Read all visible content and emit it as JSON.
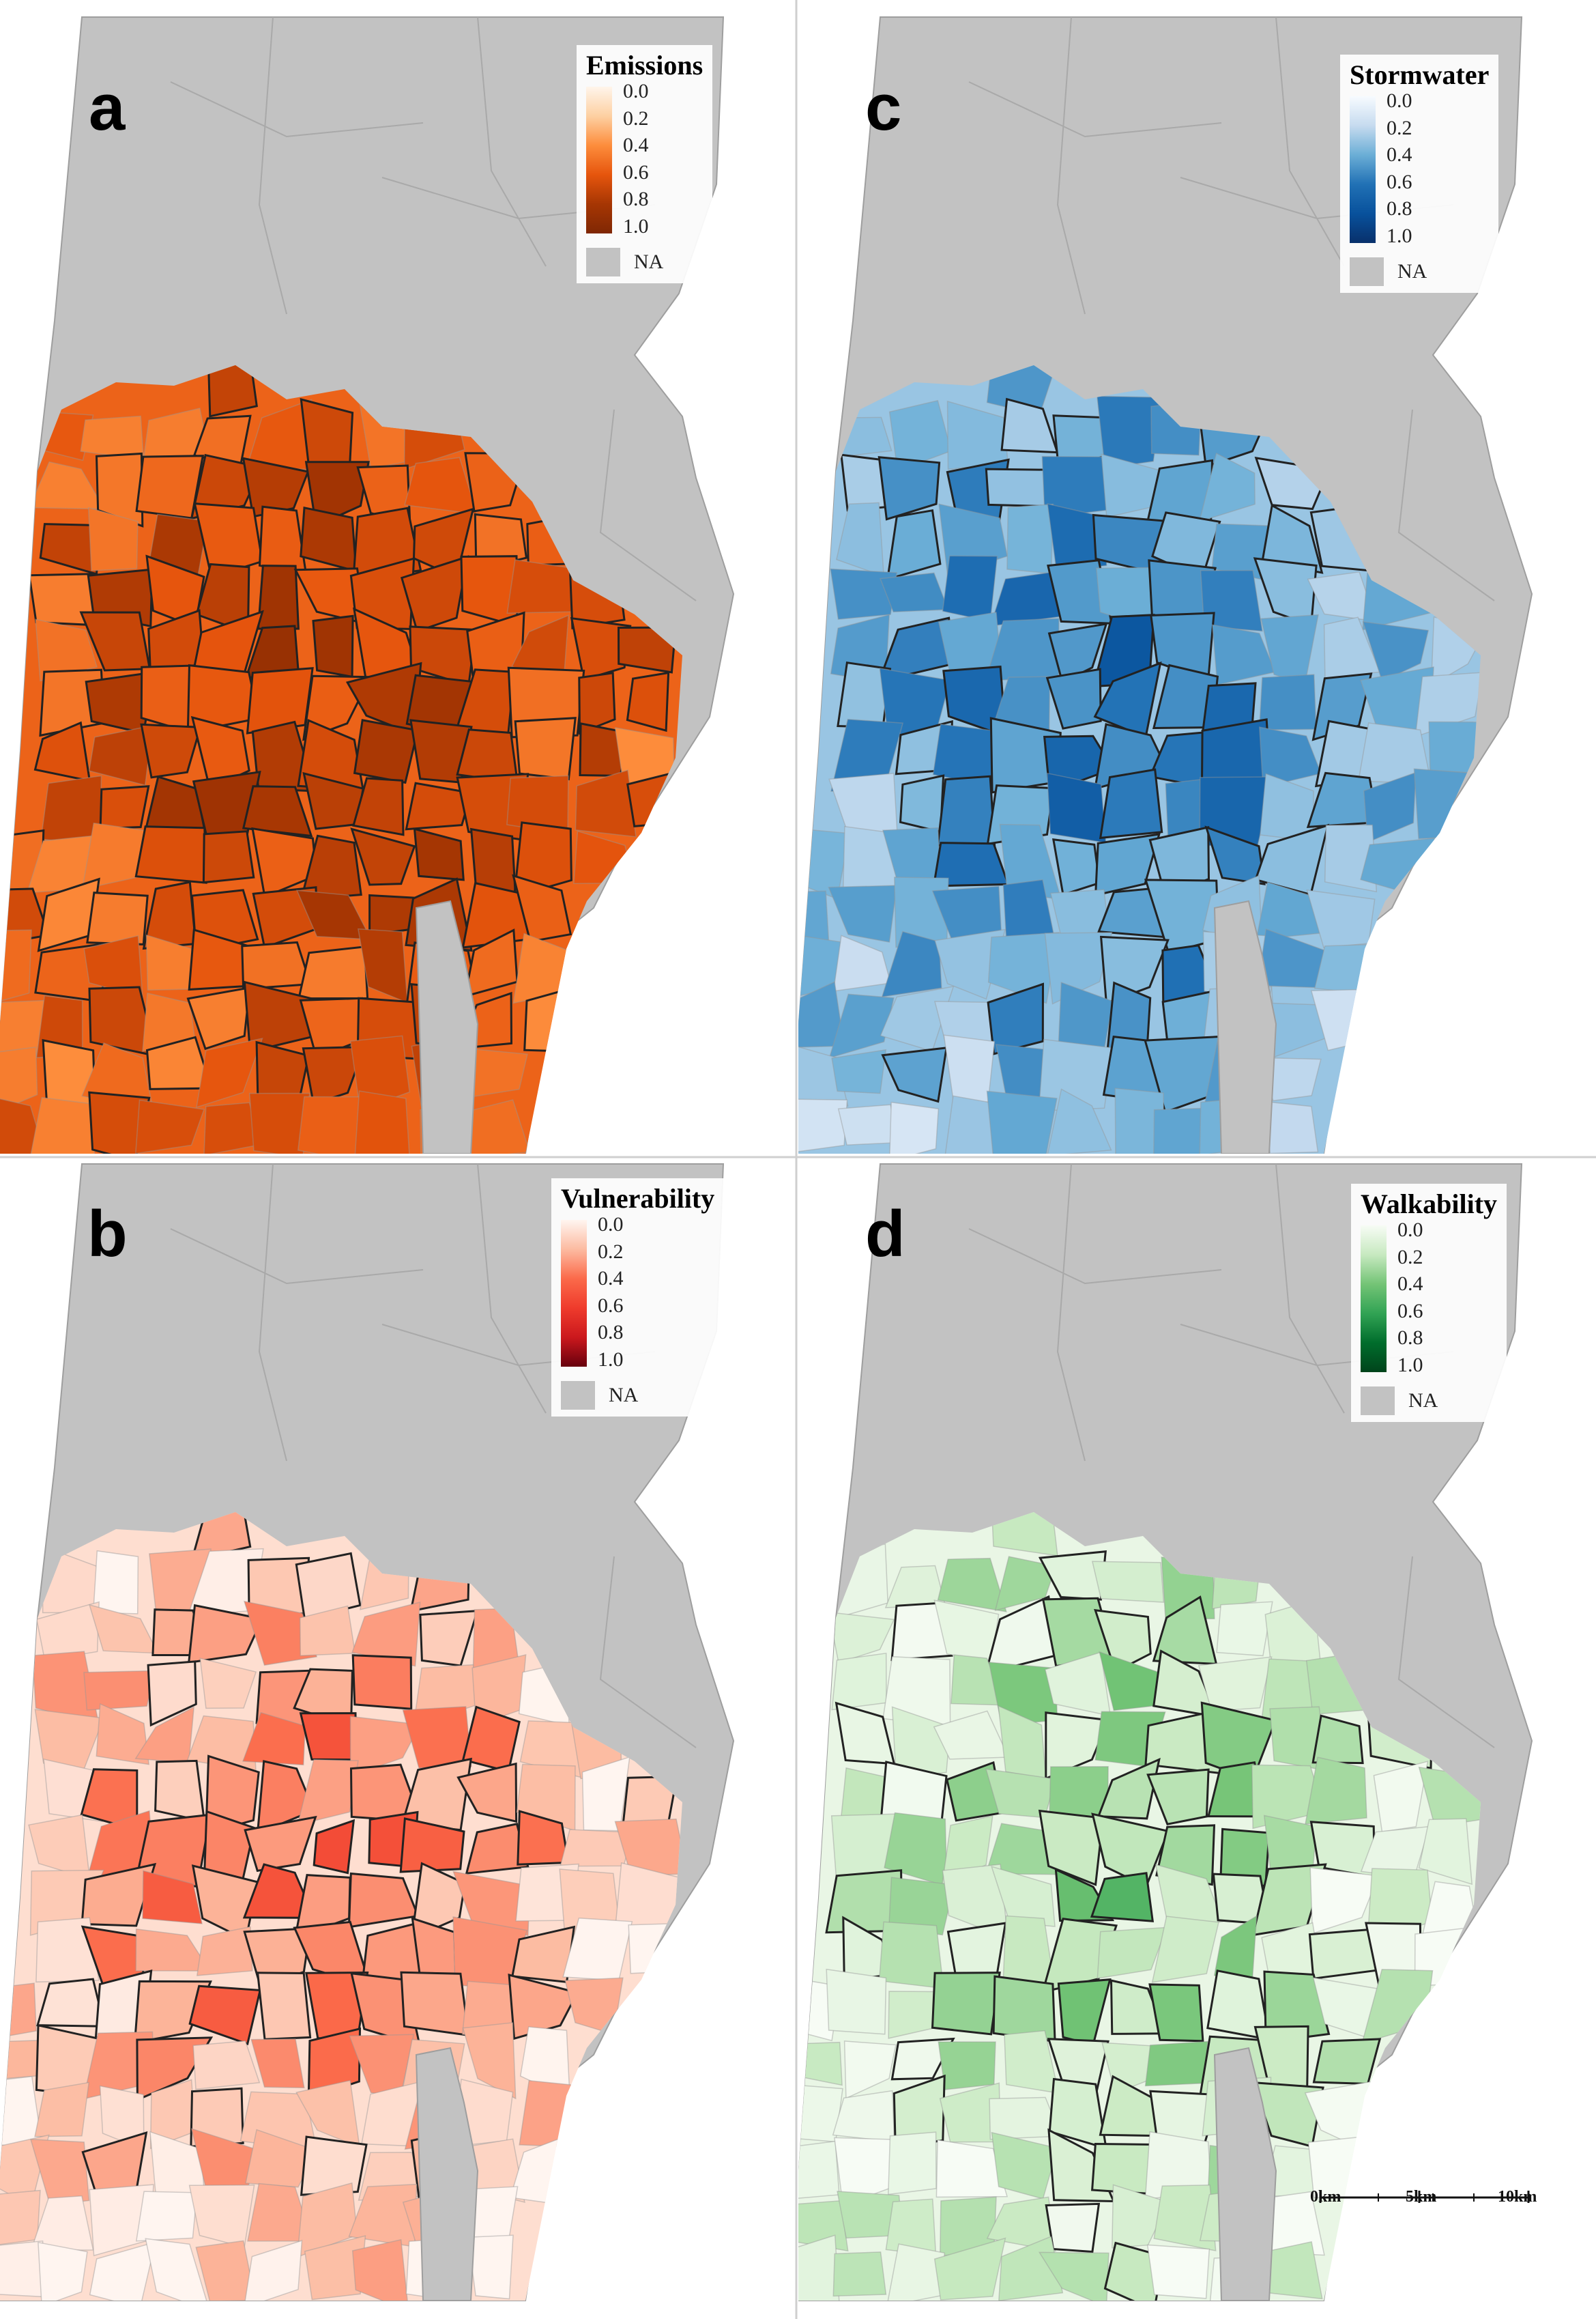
{
  "figure": {
    "panels": [
      {
        "id": "a",
        "letter": "a",
        "legend": {
          "title": "Emissions",
          "ticks": [
            "0.0",
            "0.2",
            "0.4",
            "0.6",
            "0.8",
            "1.0"
          ],
          "na_label": "NA",
          "colors": [
            "#fff5eb",
            "#fdd0a2",
            "#fd8d3c",
            "#e6550d",
            "#a63603",
            "#7f2704"
          ]
        },
        "value_summary": {
          "overall_level": 0.55,
          "core_level": 0.75,
          "outlined_count_approx": 45
        }
      },
      {
        "id": "c",
        "letter": "c",
        "legend": {
          "title": "Stormwater",
          "ticks": [
            "0.0",
            "0.2",
            "0.4",
            "0.6",
            "0.8",
            "1.0"
          ],
          "na_label": "NA",
          "colors": [
            "#f7fbff",
            "#c6dbef",
            "#6baed6",
            "#2171b5",
            "#08519c",
            "#08306b"
          ]
        },
        "value_summary": {
          "overall_level": 0.3,
          "core_level": 0.65,
          "outlined_count_approx": 40
        }
      },
      {
        "id": "b",
        "letter": "b",
        "legend": {
          "title": "Vulnerability",
          "ticks": [
            "0.0",
            "0.2",
            "0.4",
            "0.6",
            "0.8",
            "1.0"
          ],
          "na_label": "NA",
          "colors": [
            "#fff5f0",
            "#fcbba1",
            "#fb6a4a",
            "#ef3b2c",
            "#cb181d",
            "#67000d"
          ]
        },
        "value_summary": {
          "overall_level": 0.08,
          "core_level": 0.45,
          "outlined_count_approx": 35
        }
      },
      {
        "id": "d",
        "letter": "d",
        "legend": {
          "title": "Walkability",
          "ticks": [
            "0.0",
            "0.2",
            "0.4",
            "0.6",
            "0.8",
            "1.0"
          ],
          "na_label": "NA",
          "colors": [
            "#f7fcf5",
            "#c7e9c0",
            "#74c476",
            "#31a354",
            "#006d2c",
            "#00441b"
          ]
        },
        "value_summary": {
          "overall_level": 0.06,
          "core_level": 0.35,
          "outlined_count_approx": 25
        },
        "scalebar": {
          "labels": [
            "0km",
            "5km",
            "10km"
          ]
        }
      }
    ],
    "na_color": "#c2c2c2"
  }
}
